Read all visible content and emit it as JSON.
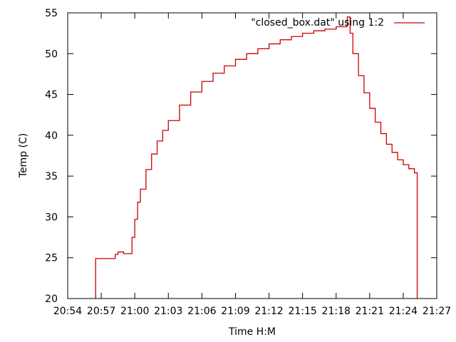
{
  "chart_data": {
    "type": "line",
    "title": "",
    "xlabel": "Time H:M",
    "ylabel": "Temp (C)",
    "xlim": [
      "20:54",
      "21:27"
    ],
    "ylim": [
      20,
      55
    ],
    "x_ticks": [
      "20:54",
      "20:57",
      "21:00",
      "21:03",
      "21:06",
      "21:09",
      "21:12",
      "21:15",
      "21:18",
      "21:21",
      "21:24",
      "21:27"
    ],
    "y_ticks": [
      20,
      25,
      30,
      35,
      40,
      45,
      50,
      55
    ],
    "grid": false,
    "legend_position": "top-right",
    "series": [
      {
        "name": "\"closed_box.dat\" using 1:2",
        "color": "#cc0000",
        "line_style": "steps",
        "x": [
          "20:56:30",
          "20:56:30",
          "20:58:00",
          "20:58:15",
          "20:58:30",
          "20:59:00",
          "20:59:30",
          "20:59:45",
          "21:00:00",
          "21:00:15",
          "21:00:30",
          "21:01:00",
          "21:01:30",
          "21:02:00",
          "21:02:30",
          "21:03:00",
          "21:04:00",
          "21:05:00",
          "21:06:00",
          "21:07:00",
          "21:08:00",
          "21:09:00",
          "21:10:00",
          "21:11:00",
          "21:12:00",
          "21:13:00",
          "21:14:00",
          "21:15:00",
          "21:16:00",
          "21:17:00",
          "21:18:00",
          "21:19:00",
          "21:19:15",
          "21:19:30",
          "21:20:00",
          "21:20:30",
          "21:21:00",
          "21:21:30",
          "21:22:00",
          "21:22:30",
          "21:23:00",
          "21:23:30",
          "21:24:00",
          "21:24:30",
          "21:25:00",
          "21:25:15",
          "21:25:15"
        ],
        "y": [
          20.0,
          24.9,
          24.9,
          25.4,
          25.7,
          25.5,
          25.5,
          27.5,
          29.7,
          31.8,
          33.4,
          35.8,
          37.7,
          39.3,
          40.6,
          41.8,
          43.7,
          45.3,
          46.6,
          47.6,
          48.5,
          49.3,
          50.0,
          50.6,
          51.2,
          51.7,
          52.1,
          52.5,
          52.8,
          53.0,
          53.3,
          54.5,
          52.5,
          50.0,
          47.3,
          45.2,
          43.3,
          41.6,
          40.2,
          38.9,
          37.9,
          37.0,
          36.4,
          35.9,
          35.4,
          35.2,
          20.0
        ]
      }
    ]
  }
}
